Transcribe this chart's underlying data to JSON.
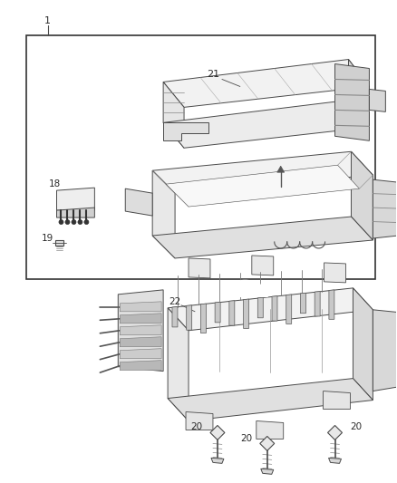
{
  "background_color": "#ffffff",
  "line_color": "#4a4a4a",
  "text_color": "#2a2a2a",
  "fig_width": 4.38,
  "fig_height": 5.33,
  "dpi": 100,
  "label_fontsize": 7.5,
  "box_border_color": "#333333",
  "light_gray": "#f2f2f2",
  "mid_gray": "#d8d8d8",
  "dark_gray": "#b8b8b8",
  "line_width": 0.7
}
